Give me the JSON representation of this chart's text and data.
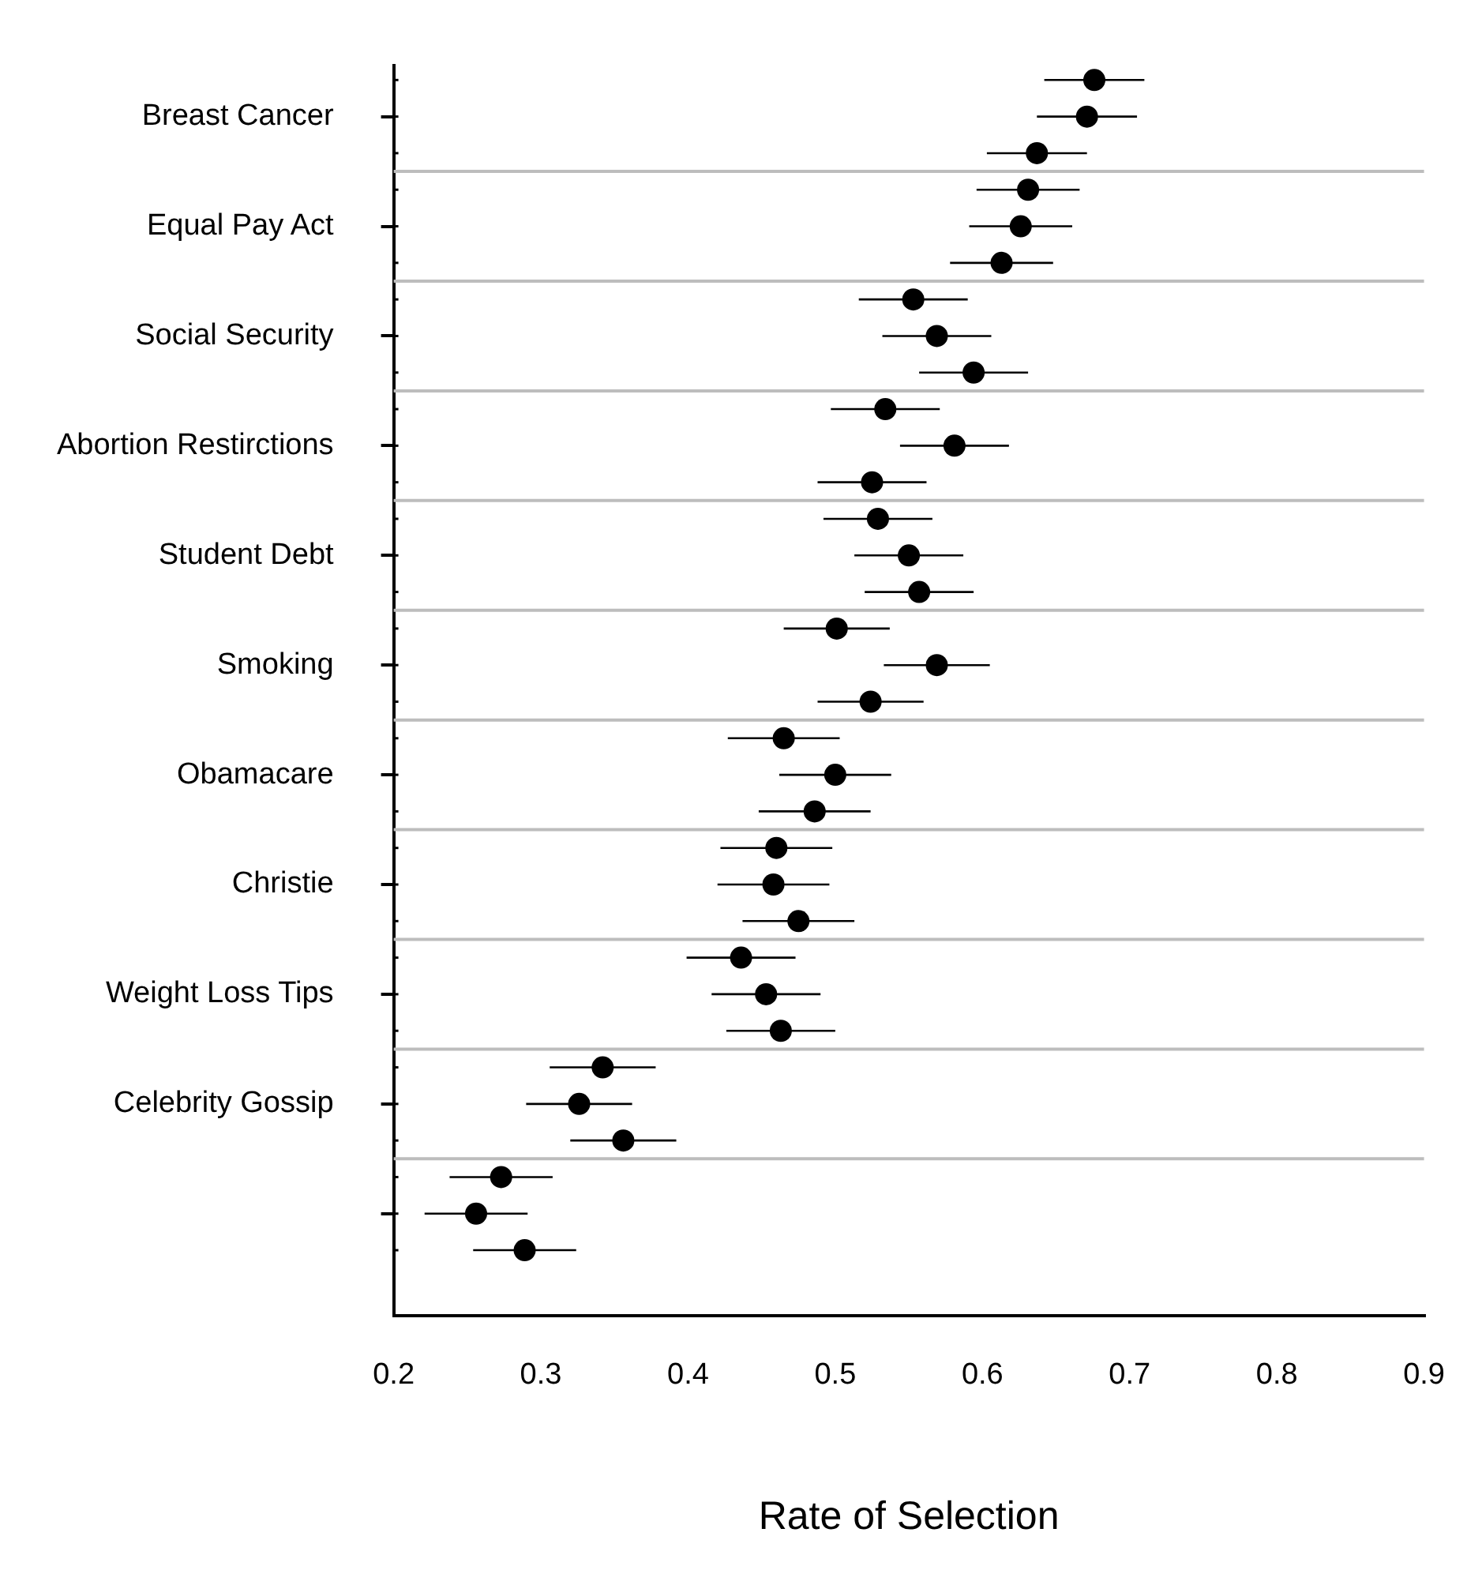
{
  "chart_data": {
    "type": "scatter",
    "orientation": "horizontal",
    "xlabel": "Rate of Selection",
    "categories": [
      "Breast Cancer",
      "Equal Pay Act",
      "Social Security",
      "Abortion Restirctions",
      "Student Debt",
      "Smoking",
      "Obamacare",
      "Christie",
      "Weight Loss Tips",
      "Celebrity Gossip",
      null
    ],
    "xlim": [
      0.2,
      0.9
    ],
    "xticks": [
      0.2,
      0.3,
      0.4,
      0.5,
      0.6,
      0.7,
      0.8,
      0.9
    ],
    "grid": "y",
    "marker": "circle",
    "legend": false,
    "series": [
      {
        "color": "#000000",
        "values": [
          0.676,
          0.631,
          0.553,
          0.534,
          0.529,
          0.501,
          0.465,
          0.46,
          0.436,
          0.342,
          0.273
        ],
        "errors": [
          0.034,
          0.035,
          0.037,
          0.037,
          0.037,
          0.036,
          0.038,
          0.038,
          0.037,
          0.036,
          0.035
        ]
      },
      {
        "color": "#000000",
        "values": [
          0.671,
          0.626,
          0.569,
          0.581,
          0.55,
          0.569,
          0.5,
          0.458,
          0.453,
          0.326,
          0.256
        ],
        "errors": [
          0.034,
          0.035,
          0.037,
          0.037,
          0.037,
          0.036,
          0.038,
          0.038,
          0.037,
          0.036,
          0.035
        ]
      },
      {
        "color": "#000000",
        "values": [
          0.637,
          0.613,
          0.594,
          0.525,
          0.557,
          0.524,
          0.486,
          0.475,
          0.463,
          0.356,
          0.289
        ],
        "errors": [
          0.034,
          0.035,
          0.037,
          0.037,
          0.037,
          0.036,
          0.038,
          0.038,
          0.037,
          0.036,
          0.035
        ]
      }
    ]
  }
}
